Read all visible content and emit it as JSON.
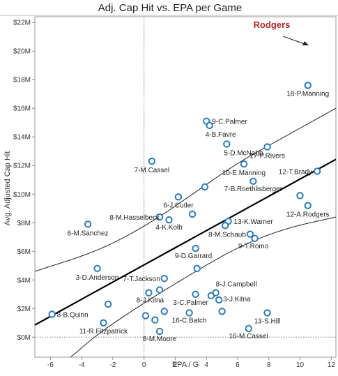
{
  "chart_data": {
    "type": "scatter",
    "title": "Adj. Cap Hit vs. EPA per Game",
    "xlabel": "EPA / G",
    "ylabel": "Avg. Adjusted Cap Hit",
    "xlim": [
      -7,
      12.3
    ],
    "ylim": [
      -1.4,
      22.4
    ],
    "x_ticks": [
      {
        "value": -6,
        "label": "-6"
      },
      {
        "value": -4,
        "label": "-4"
      },
      {
        "value": -2,
        "label": "-2"
      },
      {
        "value": 0,
        "label": "0"
      },
      {
        "value": 2,
        "label": "2"
      },
      {
        "value": 4,
        "label": "4"
      },
      {
        "value": 6,
        "label": "6"
      },
      {
        "value": 8,
        "label": "8"
      },
      {
        "value": 10,
        "label": "10"
      },
      {
        "value": 12,
        "label": "12"
      }
    ],
    "y_ticks": [
      {
        "value": 0,
        "label": "$0M"
      },
      {
        "value": 2,
        "label": "$2M"
      },
      {
        "value": 4,
        "label": "$4M"
      },
      {
        "value": 6,
        "label": "$6M"
      },
      {
        "value": 8,
        "label": "$8M"
      },
      {
        "value": 10,
        "label": "$10M"
      },
      {
        "value": 12,
        "label": "$12M"
      },
      {
        "value": 14,
        "label": "$14M"
      },
      {
        "value": 16,
        "label": "$16M"
      },
      {
        "value": 18,
        "label": "$18M"
      },
      {
        "value": 20,
        "label": "$20M"
      },
      {
        "value": 22,
        "label": "$22M"
      }
    ],
    "grid": false,
    "zero_lines": true,
    "colors": {
      "point": "#2e7bb4",
      "annotation": "#b0282c",
      "trend": "#000000"
    },
    "trend_line": {
      "slope": 0.6,
      "intercept": 5.05
    },
    "confidence_band": {
      "upper": [
        [
          -7,
          4.6
        ],
        [
          -3,
          6.0
        ],
        [
          0,
          7.7
        ],
        [
          3,
          9.9
        ],
        [
          6,
          12.2
        ],
        [
          9,
          14.0
        ],
        [
          12.3,
          16.0
        ]
      ],
      "lower": [
        [
          -4.7,
          -1.4
        ],
        [
          -3,
          0.2
        ],
        [
          0,
          2.4
        ],
        [
          3,
          4.4
        ],
        [
          6,
          6.3
        ],
        [
          9,
          7.6
        ],
        [
          12.3,
          8.4
        ]
      ]
    },
    "points": [
      {
        "x": 10.5,
        "y": 17.6,
        "label": "18-P.Manning"
      },
      {
        "x": 4.0,
        "y": 15.1,
        "label": "9-C.Palmer"
      },
      {
        "x": 4.2,
        "y": 14.8,
        "label": "4-B.Favre"
      },
      {
        "x": 5.3,
        "y": 13.5,
        "label": "5-D.McNabb"
      },
      {
        "x": 7.9,
        "y": 13.3,
        "label": "17-P.Rivers"
      },
      {
        "x": 0.5,
        "y": 12.3,
        "label": "7-M.Cassel"
      },
      {
        "x": 6.4,
        "y": 12.1,
        "label": "10-E.Manning"
      },
      {
        "x": 11.1,
        "y": 11.6,
        "label": "12-T.Brady"
      },
      {
        "x": 7.0,
        "y": 10.9,
        "label": "7-B.Roethlisberger"
      },
      {
        "x": 3.9,
        "y": 10.5,
        "label": ""
      },
      {
        "x": 2.2,
        "y": 9.8,
        "label": "6-J.Cutler"
      },
      {
        "x": 10.0,
        "y": 9.9,
        "label": ""
      },
      {
        "x": 10.5,
        "y": 9.2,
        "label": "12-A.Rodgers"
      },
      {
        "x": 3.1,
        "y": 8.6,
        "label": ""
      },
      {
        "x": 1.0,
        "y": 8.4,
        "label": "8-M.Hasselbeck"
      },
      {
        "x": 1.6,
        "y": 8.2,
        "label": "4-K.Kolb"
      },
      {
        "x": 5.4,
        "y": 8.1,
        "label": "13-K.Warner"
      },
      {
        "x": 5.2,
        "y": 7.8,
        "label": ""
      },
      {
        "x": -3.6,
        "y": 7.9,
        "label": "6-M.Sanchez"
      },
      {
        "x": 6.8,
        "y": 7.2,
        "label": "8-M.Schaub"
      },
      {
        "x": 7.1,
        "y": 6.9,
        "label": "9-T.Romo"
      },
      {
        "x": 3.3,
        "y": 6.2,
        "label": "9-D.Garrard"
      },
      {
        "x": -3.0,
        "y": 4.8,
        "label": "3-D.Anderson"
      },
      {
        "x": 3.4,
        "y": 4.8,
        "label": ""
      },
      {
        "x": 1.3,
        "y": 4.1,
        "label": "7-T.Jackson"
      },
      {
        "x": 4.6,
        "y": 3.1,
        "label": "8-J.Campbell"
      },
      {
        "x": 1.0,
        "y": 3.3,
        "label": ""
      },
      {
        "x": 0.3,
        "y": 3.1,
        "label": "8-J.Kitna"
      },
      {
        "x": 4.3,
        "y": 2.9,
        "label": ""
      },
      {
        "x": 3.3,
        "y": 3.0,
        "label": "3-C.Palmer"
      },
      {
        "x": 4.8,
        "y": 2.6,
        "label": "3-J.Kitna"
      },
      {
        "x": -2.3,
        "y": 2.3,
        "label": ""
      },
      {
        "x": 1.3,
        "y": 1.8,
        "label": ""
      },
      {
        "x": 5.0,
        "y": 1.8,
        "label": ""
      },
      {
        "x": 0.1,
        "y": 1.5,
        "label": ""
      },
      {
        "x": 2.9,
        "y": 1.7,
        "label": "16-C.Batch"
      },
      {
        "x": 7.9,
        "y": 1.7,
        "label": "13-S.Hill"
      },
      {
        "x": -5.9,
        "y": 1.6,
        "label": "8-B.Quinn"
      },
      {
        "x": 0.7,
        "y": 1.2,
        "label": ""
      },
      {
        "x": -2.6,
        "y": 1.0,
        "label": "11-R.Fitzpatrick"
      },
      {
        "x": 6.7,
        "y": 0.6,
        "label": "16-M.Cassel"
      },
      {
        "x": 1.0,
        "y": 0.4,
        "label": "8-M.Moore"
      }
    ],
    "annotation": {
      "text": "Rodgers"
    }
  }
}
